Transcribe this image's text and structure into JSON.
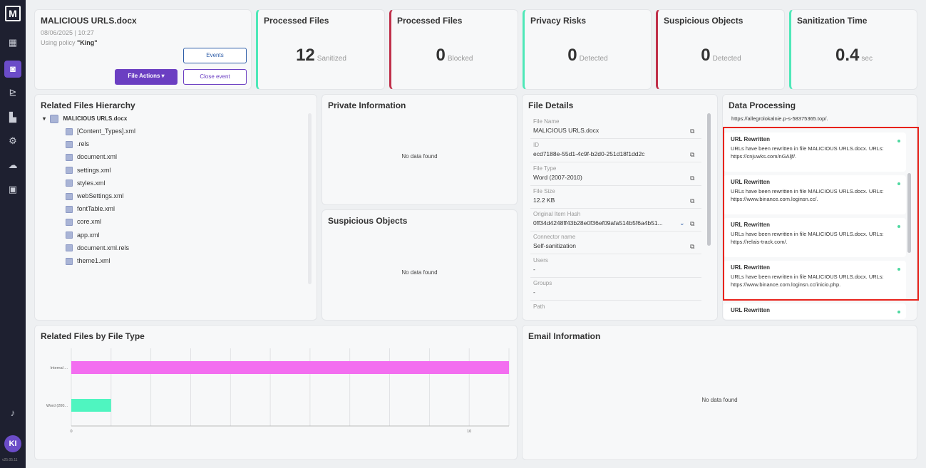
{
  "app": {
    "logo": "M",
    "version": "v25.05.11",
    "avatar": "KI"
  },
  "sidebar": {
    "icons": [
      "dashboard-icon",
      "file-icon",
      "chart-icon",
      "analytics-icon",
      "settings-icon",
      "cloud-icon",
      "report-icon",
      "bell-icon"
    ]
  },
  "file_card": {
    "title": "MALICIOUS URLS.docx",
    "datetime": "08/06/2025 | 10:27",
    "policy_prefix": "Using policy ",
    "policy_name": "\"King\"",
    "events_label": "Events",
    "file_actions_label": "File Actions ▾",
    "close_event_label": "Close event"
  },
  "stats": [
    {
      "title": "Processed Files",
      "value": "12",
      "unit": "Sanitized",
      "accent": "#4ee8b8"
    },
    {
      "title": "Processed Files",
      "value": "0",
      "unit": "Blocked",
      "accent": "#c0304a"
    },
    {
      "title": "Privacy Risks",
      "value": "0",
      "unit": "Detected",
      "accent": "#4ee8b8"
    },
    {
      "title": "Suspicious Objects",
      "value": "0",
      "unit": "Detected",
      "accent": "#c0304a"
    },
    {
      "title": "Sanitization Time",
      "value": "0.4",
      "unit": "sec",
      "accent": "#4ee8b8"
    }
  ],
  "hierarchy": {
    "title": "Related Files Hierarchy",
    "root": "MALICIOUS URLS.docx",
    "children": [
      "[Content_Types].xml",
      ".rels",
      "document.xml",
      "settings.xml",
      "styles.xml",
      "webSettings.xml",
      "fontTable.xml",
      "core.xml",
      "app.xml",
      "document.xml.rels",
      "theme1.xml"
    ]
  },
  "private_info": {
    "title": "Private Information",
    "empty": "No data found"
  },
  "suspicious": {
    "title": "Suspicious Objects",
    "empty": "No data found"
  },
  "file_details": {
    "title": "File Details",
    "fields": [
      {
        "label": "File Name",
        "value": "MALICIOUS URLS.docx"
      },
      {
        "label": "ID",
        "value": "ecd7188e-55d1-4c9f-b2d0-251d18f1dd2c"
      },
      {
        "label": "File Type",
        "value": "Word (2007-2010)"
      },
      {
        "label": "File Size",
        "value": "12.2 KB"
      },
      {
        "label": "Original Item Hash",
        "value": "0ff34d4248ff43b28e0f36ef09afa514b5f6a4b51..."
      },
      {
        "label": "Connector name",
        "value": "Self-sanitization"
      },
      {
        "label": "Users",
        "value": "-"
      },
      {
        "label": "Groups",
        "value": "-"
      },
      {
        "label": "Path",
        "value": ""
      }
    ]
  },
  "data_processing": {
    "title": "Data Processing",
    "top_url": "https://allegrolokalnie.p-s-58375365.top/.",
    "items": [
      {
        "heading": "URL Rewritten",
        "text": "URLs have been rewritten in file MALICIOUS URLS.docx. URLs: https://cnjuwks.com/nGAljf/."
      },
      {
        "heading": "URL Rewritten",
        "text": "URLs have been rewritten in file MALICIOUS URLS.docx. URLs: https://www.binance.com.loginsn.cc/."
      },
      {
        "heading": "URL Rewritten",
        "text": "URLs have been rewritten in file MALICIOUS URLS.docx. URLs: https://relais-track.com/."
      },
      {
        "heading": "URL Rewritten",
        "text": "URLs have been rewritten in file MALICIOUS URLS.docx. URLs: https://www.binance.com.loginsn.cc/inicio.php."
      },
      {
        "heading": "URL Rewritten",
        "text": ""
      }
    ]
  },
  "by_type": {
    "title": "Related Files by File Type"
  },
  "chart_data": {
    "type": "bar",
    "orientation": "horizontal",
    "title": "Related Files by File Type",
    "categories": [
      "Internal ...",
      "Word (200..."
    ],
    "values": [
      11,
      1
    ],
    "colors": [
      "#f36ef0",
      "#4ff5c0"
    ],
    "xlim": [
      0,
      11
    ],
    "xticks": [
      "0",
      "10"
    ],
    "grid": true
  },
  "email_info": {
    "title": "Email Information",
    "empty": "No data found"
  }
}
